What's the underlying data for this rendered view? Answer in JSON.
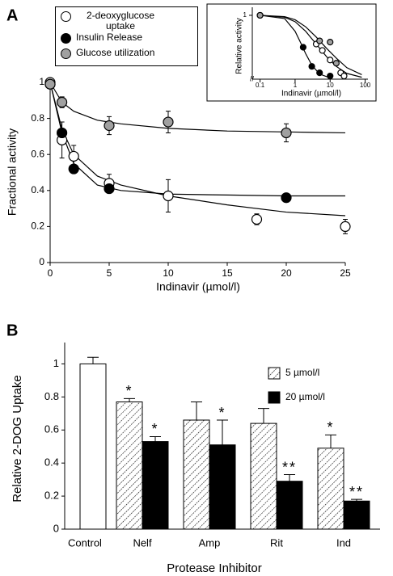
{
  "chart_data": [
    {
      "type": "scatter",
      "label": "A",
      "xlabel": "Indinavir (µmol/l)",
      "ylabel": "Fractional activity",
      "xlim": [
        0,
        25
      ],
      "ylim": [
        0,
        1
      ],
      "xticks": [
        0,
        5,
        10,
        15,
        20,
        25
      ],
      "yticks": [
        0,
        0.2,
        0.4,
        0.6,
        0.8,
        1
      ],
      "series": [
        {
          "name": "2-deoxyglucose uptake",
          "color": "#ffffff",
          "x": [
            0,
            1,
            2,
            5,
            10,
            17.5,
            25
          ],
          "values": [
            1.0,
            0.68,
            0.59,
            0.44,
            0.37,
            0.24,
            0.2
          ],
          "errors": [
            0.02,
            0.1,
            0.06,
            0.05,
            0.09,
            0.03,
            0.04
          ],
          "curve": {
            "x": [
              0,
              1,
              2,
              4,
              6,
              10,
              15,
              20,
              25
            ],
            "values": [
              1.0,
              0.74,
              0.6,
              0.48,
              0.43,
              0.37,
              0.32,
              0.28,
              0.26
            ]
          }
        },
        {
          "name": "Insulin Release",
          "color": "#000000",
          "x": [
            0,
            1,
            2,
            5,
            20
          ],
          "values": [
            0.99,
            0.72,
            0.52,
            0.41,
            0.36
          ],
          "errors": [
            0.01,
            0.02,
            0.02,
            0.02,
            0.01
          ],
          "curve": {
            "x": [
              0,
              1,
              2,
              4,
              6,
              10,
              15,
              20,
              25
            ],
            "values": [
              1.0,
              0.72,
              0.55,
              0.43,
              0.4,
              0.38,
              0.375,
              0.37,
              0.37
            ]
          }
        },
        {
          "name": "Glucose utilization",
          "color": "#a0a0a0",
          "x": [
            0,
            1,
            5,
            10,
            20
          ],
          "values": [
            0.99,
            0.89,
            0.76,
            0.78,
            0.72
          ],
          "errors": [
            0.02,
            0.03,
            0.05,
            0.06,
            0.05
          ],
          "curve": {
            "x": [
              0,
              1,
              2,
              4,
              6,
              10,
              15,
              20,
              25
            ],
            "values": [
              1.0,
              0.89,
              0.84,
              0.79,
              0.77,
              0.745,
              0.73,
              0.725,
              0.72
            ]
          }
        }
      ]
    },
    {
      "type": "scatter",
      "xlabel": "Indinavir (µmol/l)",
      "ylabel": "Relative activity",
      "xscale": "log",
      "xlim": [
        0.06,
        120
      ],
      "ylim": [
        0,
        1.05
      ],
      "xticks": [
        0.1,
        1,
        10,
        100
      ],
      "yticks": [
        1
      ],
      "series": [
        {
          "color": "#ffffff",
          "x": [
            0.1,
            4,
            6,
            10,
            20,
            25
          ],
          "values": [
            1.0,
            0.55,
            0.45,
            0.3,
            0.1,
            0.05
          ],
          "curve": {
            "x": [
              0.1,
              0.5,
              1,
              2,
              4,
              8,
              15,
              30,
              80
            ],
            "values": [
              1.0,
              0.97,
              0.9,
              0.75,
              0.55,
              0.35,
              0.2,
              0.09,
              0.03
            ]
          }
        },
        {
          "color": "#000000",
          "x": [
            1.7,
            3,
            5,
            10
          ],
          "values": [
            0.5,
            0.2,
            0.1,
            0.05
          ],
          "curve": {
            "x": [
              0.1,
              0.5,
              1,
              1.5,
              2,
              3,
              5,
              10
            ],
            "values": [
              1.0,
              0.95,
              0.75,
              0.55,
              0.4,
              0.22,
              0.08,
              0.02
            ]
          }
        },
        {
          "color": "#a0a0a0",
          "x": [
            0.1,
            5,
            10,
            15
          ],
          "values": [
            1.0,
            0.6,
            0.58,
            0.25
          ],
          "curve": {
            "x": [
              0.1,
              0.5,
              1,
              2,
              4,
              8,
              15,
              30,
              80
            ],
            "values": [
              1.0,
              0.98,
              0.93,
              0.82,
              0.66,
              0.48,
              0.33,
              0.18,
              0.07
            ]
          }
        }
      ]
    },
    {
      "type": "bar",
      "label": "B",
      "xlabel": "Protease Inhibitor",
      "ylabel": "Relative 2-DOG Uptake",
      "categories": [
        "Control",
        "Nelf",
        "Amp",
        "Rit",
        "Ind"
      ],
      "ylim": [
        0,
        1.1
      ],
      "yticks": [
        0,
        0.2,
        0.4,
        0.6,
        0.8,
        1
      ],
      "series": [
        {
          "color": "#ffffff",
          "values": [
            1.0,
            null,
            null,
            null,
            null
          ],
          "errors": [
            0.04,
            null,
            null,
            null,
            null
          ]
        },
        {
          "name": "5 µmol/l",
          "color": "hatch",
          "values": [
            null,
            0.77,
            0.66,
            0.64,
            0.49
          ],
          "errors": [
            null,
            0.02,
            0.11,
            0.09,
            0.08
          ],
          "labels": [
            null,
            "*",
            null,
            null,
            "*"
          ]
        },
        {
          "name": "20 µmol/l",
          "color": "#000000",
          "values": [
            null,
            0.53,
            0.51,
            0.29,
            0.17
          ],
          "errors": [
            null,
            0.03,
            0.15,
            0.04,
            0.01
          ],
          "labels": [
            null,
            "*",
            "*",
            "**",
            "**"
          ]
        }
      ]
    }
  ]
}
